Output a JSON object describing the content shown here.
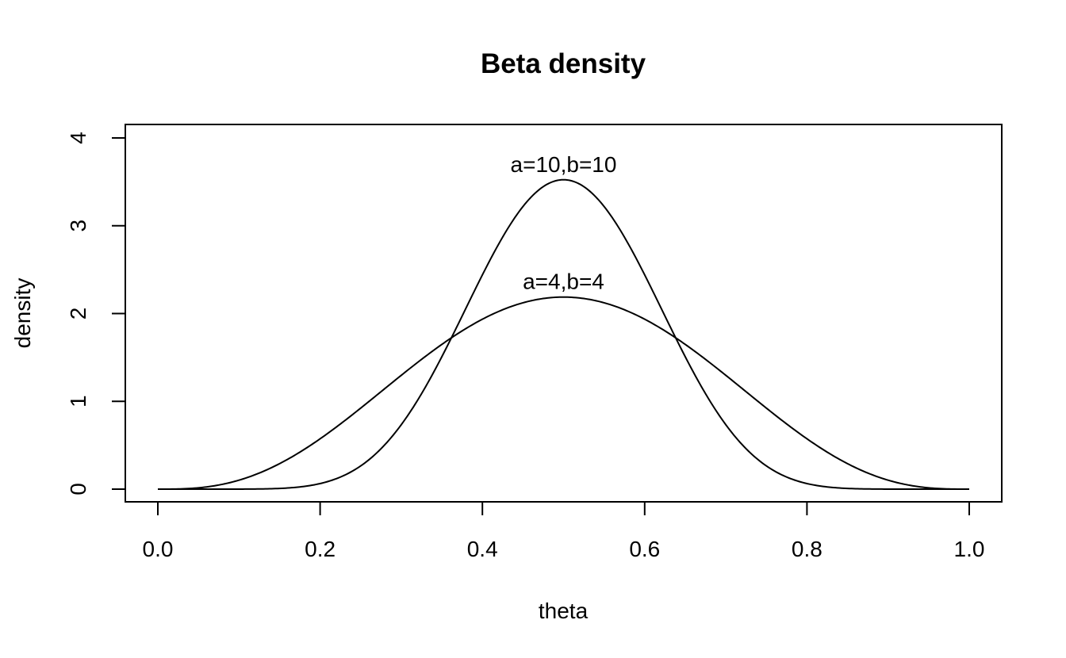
{
  "chart_data": {
    "type": "line",
    "title": "Beta density",
    "xlabel": "theta",
    "ylabel": "density",
    "xlim": [
      0,
      1
    ],
    "ylim": [
      0,
      4
    ],
    "xticks": [
      {
        "value": 0.0,
        "label": "0.0"
      },
      {
        "value": 0.2,
        "label": "0.2"
      },
      {
        "value": 0.4,
        "label": "0.4"
      },
      {
        "value": 0.6,
        "label": "0.6"
      },
      {
        "value": 0.8,
        "label": "0.8"
      },
      {
        "value": 1.0,
        "label": "1.0"
      }
    ],
    "yticks": [
      {
        "value": 0,
        "label": "0"
      },
      {
        "value": 1,
        "label": "1"
      },
      {
        "value": 2,
        "label": "2"
      },
      {
        "value": 3,
        "label": "3"
      },
      {
        "value": 4,
        "label": "4"
      }
    ],
    "grid": false,
    "series": [
      {
        "distribution": "beta",
        "a": 10,
        "b": 10,
        "x": [
          0.0,
          0.05,
          0.1,
          0.15,
          0.2,
          0.25,
          0.3,
          0.35,
          0.4,
          0.45,
          0.5,
          0.55,
          0.6,
          0.65,
          0.7,
          0.75,
          0.8,
          0.85,
          0.9,
          0.95,
          1.0
        ],
        "y": [
          0.0,
          0.0,
          0.0,
          0.006,
          0.05,
          0.2,
          0.66,
          1.53,
          2.59,
          3.31,
          3.52,
          3.31,
          2.59,
          1.53,
          0.66,
          0.2,
          0.05,
          0.006,
          0.0,
          0.0,
          0.0
        ]
      },
      {
        "distribution": "beta",
        "a": 4,
        "b": 4,
        "x": [
          0.0,
          0.05,
          0.1,
          0.15,
          0.2,
          0.25,
          0.3,
          0.35,
          0.4,
          0.45,
          0.5,
          0.55,
          0.6,
          0.65,
          0.7,
          0.75,
          0.8,
          0.85,
          0.9,
          0.95,
          1.0
        ],
        "y": [
          0.0,
          0.017,
          0.102,
          0.273,
          0.516,
          0.795,
          1.067,
          1.6,
          1.935,
          2.115,
          2.188,
          2.115,
          1.935,
          1.6,
          1.067,
          0.795,
          0.516,
          0.273,
          0.102,
          0.017,
          0.0
        ]
      }
    ],
    "annotations": [
      {
        "text": "a=10,b=10",
        "x": 0.5,
        "y": 3.52
      },
      {
        "text": "a=4,b=4",
        "x": 0.5,
        "y": 2.19
      }
    ]
  }
}
